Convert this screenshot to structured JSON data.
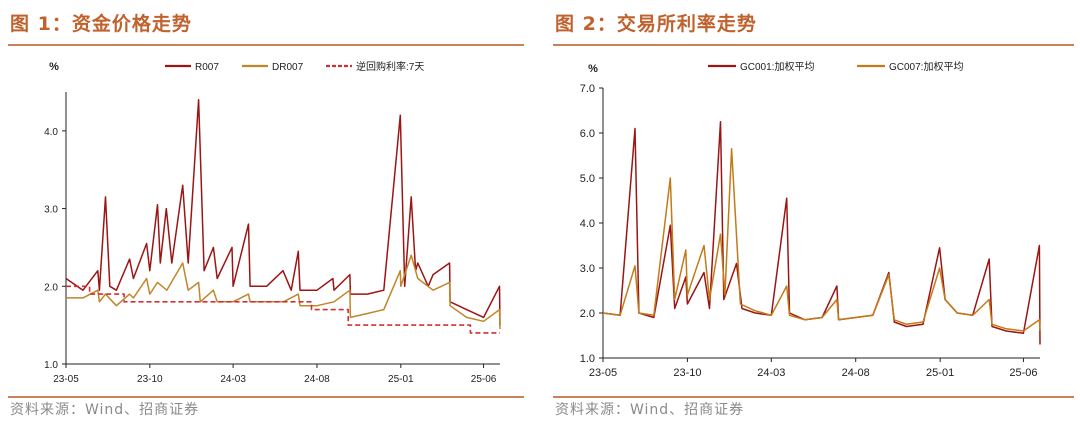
{
  "figures": [
    {
      "title": "图 1：资金价格走势",
      "source": "资料来源：Wind、招商证券"
    },
    {
      "title": "图 2：交易所利率走势",
      "source": "资料来源：Wind、招商证券"
    }
  ],
  "chart_data": [
    {
      "type": "line",
      "title": "",
      "ylabel": "%",
      "xlabel": "",
      "ylim": [
        1.0,
        4.5
      ],
      "yticks": [
        "1.0",
        "2.0",
        "3.0",
        "4.0"
      ],
      "xticks": [
        "23-05",
        "23-10",
        "24-03",
        "24-08",
        "25-01",
        "25-06"
      ],
      "x_range": [
        "2023-05",
        "2025-07"
      ],
      "legend_position": "top",
      "series": [
        {
          "name": "R007",
          "color": "#9c1515",
          "style": "solid",
          "points": [
            [
              "2023-05",
              2.1
            ],
            [
              "2023-06",
              1.95
            ],
            [
              "2023-06-28",
              2.2
            ],
            [
              "2023-07",
              1.95
            ],
            [
              "2023-07-12",
              3.15
            ],
            [
              "2023-07-20",
              2.0
            ],
            [
              "2023-08",
              1.95
            ],
            [
              "2023-08-25",
              2.35
            ],
            [
              "2023-09",
              2.1
            ],
            [
              "2023-09-25",
              2.55
            ],
            [
              "2023-10",
              2.2
            ],
            [
              "2023-10-15",
              3.05
            ],
            [
              "2023-10-20",
              2.3
            ],
            [
              "2023-10-31",
              3.0
            ],
            [
              "2023-11-10",
              2.3
            ],
            [
              "2023-11-30",
              3.3
            ],
            [
              "2023-12-10",
              2.3
            ],
            [
              "2023-12-29",
              4.4
            ],
            [
              "2024-01-08",
              2.2
            ],
            [
              "2024-01-25",
              2.5
            ],
            [
              "2024-02",
              2.1
            ],
            [
              "2024-02-28",
              2.5
            ],
            [
              "2024-03",
              2.0
            ],
            [
              "2024-03-29",
              2.8
            ],
            [
              "2024-04",
              2.0
            ],
            [
              "2024-05",
              2.0
            ],
            [
              "2024-05-31",
              2.2
            ],
            [
              "2024-06-15",
              1.95
            ],
            [
              "2024-06-28",
              2.45
            ],
            [
              "2024-07",
              1.95
            ],
            [
              "2024-08",
              1.95
            ],
            [
              "2024-08-30",
              2.1
            ],
            [
              "2024-09",
              1.95
            ],
            [
              "2024-09-30",
              2.15
            ],
            [
              "2024-10",
              1.9
            ],
            [
              "2024-11",
              1.9
            ],
            [
              "2024-12",
              1.95
            ],
            [
              "2024-12-31",
              4.2
            ],
            [
              "2025-01-08",
              2.0
            ],
            [
              "2025-01-20",
              3.15
            ],
            [
              "2025-01-28",
              2.2
            ],
            [
              "2025-02",
              2.3
            ],
            [
              "2025-02-20",
              2.0
            ],
            [
              "2025-03",
              2.15
            ],
            [
              "2025-03-31",
              2.3
            ],
            [
              "2025-04",
              1.8
            ],
            [
              "2025-05",
              1.7
            ],
            [
              "2025-06",
              1.6
            ],
            [
              "2025-06-30",
              2.0
            ],
            [
              "2025-07",
              1.5
            ]
          ]
        },
        {
          "name": "DR007",
          "color": "#c1852a",
          "style": "solid",
          "points": [
            [
              "2023-05",
              1.85
            ],
            [
              "2023-06",
              1.85
            ],
            [
              "2023-06-28",
              1.95
            ],
            [
              "2023-07",
              1.8
            ],
            [
              "2023-07-12",
              1.9
            ],
            [
              "2023-08",
              1.75
            ],
            [
              "2023-08-25",
              1.9
            ],
            [
              "2023-09",
              1.85
            ],
            [
              "2023-09-25",
              2.1
            ],
            [
              "2023-10",
              1.9
            ],
            [
              "2023-10-15",
              2.05
            ],
            [
              "2023-11",
              1.95
            ],
            [
              "2023-11-30",
              2.3
            ],
            [
              "2023-12-10",
              1.95
            ],
            [
              "2023-12-29",
              2.05
            ],
            [
              "2024-01",
              1.8
            ],
            [
              "2024-01-25",
              1.95
            ],
            [
              "2024-02",
              1.8
            ],
            [
              "2024-03",
              1.8
            ],
            [
              "2024-03-29",
              1.9
            ],
            [
              "2024-04",
              1.8
            ],
            [
              "2024-05",
              1.8
            ],
            [
              "2024-06",
              1.8
            ],
            [
              "2024-06-28",
              1.9
            ],
            [
              "2024-07",
              1.75
            ],
            [
              "2024-08",
              1.75
            ],
            [
              "2024-09",
              1.8
            ],
            [
              "2024-09-30",
              1.95
            ],
            [
              "2024-10",
              1.6
            ],
            [
              "2024-11",
              1.65
            ],
            [
              "2024-12",
              1.7
            ],
            [
              "2024-12-31",
              2.2
            ],
            [
              "2025-01",
              2.0
            ],
            [
              "2025-01-20",
              2.4
            ],
            [
              "2025-02",
              2.1
            ],
            [
              "2025-03",
              1.95
            ],
            [
              "2025-03-31",
              2.05
            ],
            [
              "2025-04",
              1.75
            ],
            [
              "2025-05",
              1.6
            ],
            [
              "2025-06",
              1.55
            ],
            [
              "2025-06-30",
              1.7
            ],
            [
              "2025-07",
              1.45
            ]
          ]
        },
        {
          "name": "逆回购利率:7天",
          "color": "#d03030",
          "style": "dashed",
          "points": [
            [
              "2023-05",
              2.0
            ],
            [
              "2023-06-13",
              2.0
            ],
            [
              "2023-06-13",
              1.9
            ],
            [
              "2023-08-15",
              1.9
            ],
            [
              "2023-08-15",
              1.8
            ],
            [
              "2024-07-22",
              1.8
            ],
            [
              "2024-07-22",
              1.7
            ],
            [
              "2024-09-27",
              1.7
            ],
            [
              "2024-09-27",
              1.5
            ],
            [
              "2025-05-08",
              1.5
            ],
            [
              "2025-05-08",
              1.4
            ],
            [
              "2025-07",
              1.4
            ]
          ]
        }
      ]
    },
    {
      "type": "line",
      "title": "",
      "ylabel": "%",
      "xlabel": "",
      "ylim": [
        1.0,
        7.0
      ],
      "yticks": [
        "1.0",
        "2.0",
        "3.0",
        "4.0",
        "5.0",
        "6.0",
        "7.0"
      ],
      "xticks": [
        "23-05",
        "23-10",
        "24-03",
        "24-08",
        "25-01",
        "25-06"
      ],
      "x_range": [
        "2023-05",
        "2025-07"
      ],
      "legend_position": "top",
      "series": [
        {
          "name": "GC001:加权平均",
          "color": "#9c1515",
          "style": "solid",
          "points": [
            [
              "2023-05",
              2.0
            ],
            [
              "2023-06",
              1.95
            ],
            [
              "2023-06-28",
              6.1
            ],
            [
              "2023-07-05",
              2.0
            ],
            [
              "2023-08",
              1.9
            ],
            [
              "2023-08-31",
              3.95
            ],
            [
              "2023-09-08",
              2.1
            ],
            [
              "2023-09-28",
              2.8
            ],
            [
              "2023-10",
              2.2
            ],
            [
              "2023-10-31",
              2.9
            ],
            [
              "2023-11-10",
              2.1
            ],
            [
              "2023-11-30",
              6.25
            ],
            [
              "2023-12-06",
              2.3
            ],
            [
              "2023-12-29",
              3.1
            ],
            [
              "2024-01-08",
              2.1
            ],
            [
              "2024-02",
              2.0
            ],
            [
              "2024-03",
              1.95
            ],
            [
              "2024-03-29",
              4.55
            ],
            [
              "2024-04-03",
              2.0
            ],
            [
              "2024-05",
              1.85
            ],
            [
              "2024-06",
              1.9
            ],
            [
              "2024-06-28",
              2.6
            ],
            [
              "2024-07",
              1.85
            ],
            [
              "2024-08",
              1.9
            ],
            [
              "2024-09",
              1.95
            ],
            [
              "2024-09-30",
              2.9
            ],
            [
              "2024-10-10",
              1.8
            ],
            [
              "2024-11",
              1.7
            ],
            [
              "2024-12",
              1.75
            ],
            [
              "2024-12-31",
              3.45
            ],
            [
              "2025-01-10",
              2.3
            ],
            [
              "2025-02",
              2.0
            ],
            [
              "2025-03",
              1.95
            ],
            [
              "2025-03-31",
              3.2
            ],
            [
              "2025-04-05",
              1.7
            ],
            [
              "2025-05",
              1.6
            ],
            [
              "2025-06",
              1.55
            ],
            [
              "2025-06-30",
              3.5
            ],
            [
              "2025-07",
              1.3
            ]
          ]
        },
        {
          "name": "GC007:加权平均",
          "color": "#c47a18",
          "style": "solid",
          "points": [
            [
              "2023-05",
              2.0
            ],
            [
              "2023-06",
              1.95
            ],
            [
              "2023-06-28",
              3.05
            ],
            [
              "2023-07-05",
              2.0
            ],
            [
              "2023-08",
              1.95
            ],
            [
              "2023-08-31",
              5.0
            ],
            [
              "2023-09-08",
              2.3
            ],
            [
              "2023-09-28",
              3.4
            ],
            [
              "2023-10",
              2.4
            ],
            [
              "2023-10-31",
              3.5
            ],
            [
              "2023-11-10",
              2.3
            ],
            [
              "2023-11-30",
              3.75
            ],
            [
              "2023-12-08",
              2.4
            ],
            [
              "2023-12-20",
              5.65
            ],
            [
              "2024-01-05",
              2.2
            ],
            [
              "2024-02",
              2.05
            ],
            [
              "2024-03",
              1.95
            ],
            [
              "2024-03-29",
              2.6
            ],
            [
              "2024-04-03",
              1.95
            ],
            [
              "2024-05",
              1.85
            ],
            [
              "2024-06",
              1.9
            ],
            [
              "2024-06-28",
              2.3
            ],
            [
              "2024-07",
              1.85
            ],
            [
              "2024-08",
              1.9
            ],
            [
              "2024-09",
              1.95
            ],
            [
              "2024-09-30",
              2.85
            ],
            [
              "2024-10-10",
              1.85
            ],
            [
              "2024-11",
              1.75
            ],
            [
              "2024-12",
              1.8
            ],
            [
              "2024-12-31",
              3.0
            ],
            [
              "2025-01-10",
              2.3
            ],
            [
              "2025-02",
              2.0
            ],
            [
              "2025-03",
              1.95
            ],
            [
              "2025-03-31",
              2.3
            ],
            [
              "2025-04-05",
              1.75
            ],
            [
              "2025-05",
              1.65
            ],
            [
              "2025-06",
              1.6
            ],
            [
              "2025-06-30",
              1.85
            ],
            [
              "2025-07",
              1.6
            ]
          ]
        }
      ]
    }
  ]
}
